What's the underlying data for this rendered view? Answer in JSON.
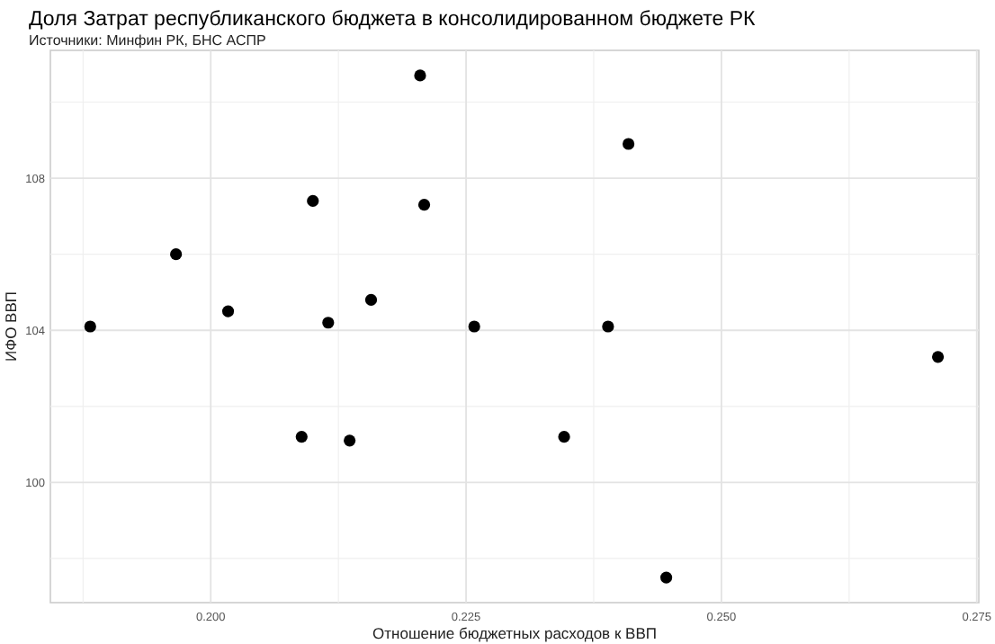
{
  "chart_data": {
    "type": "scatter",
    "title": "Доля Затрат республиканского бюджета в консолидированном бюджете РК",
    "subtitle": "Источники: Минфин РК, БНС АСПР",
    "xlabel": "Отношение бюджетных расходов к ВВП",
    "ylabel": "ИФО ВВП",
    "x": [
      0.1882,
      0.1966,
      0.2017,
      0.21,
      0.2089,
      0.2115,
      0.2136,
      0.2157,
      0.2205,
      0.2209,
      0.2258,
      0.2409,
      0.2389,
      0.2712,
      0.2346,
      0.2446
    ],
    "series": [
      {
        "color": "#000000",
        "values": [
          104.1,
          106.0,
          104.5,
          107.4,
          101.2,
          104.2,
          101.1,
          104.8,
          110.7,
          107.3,
          104.1,
          108.9,
          104.1,
          103.3,
          101.2,
          97.5
        ]
      }
    ],
    "xlim": [
      0.1843,
      0.2752
    ],
    "ylim": [
      96.84,
      111.36
    ],
    "xticks": [
      {
        "value": 0.2,
        "label": "0.200"
      },
      {
        "value": 0.225,
        "label": "0.225"
      },
      {
        "value": 0.25,
        "label": "0.250"
      },
      {
        "value": 0.275,
        "label": "0.275"
      }
    ],
    "yticks": [
      100,
      104,
      108
    ],
    "grid": true,
    "marker": "circle"
  }
}
